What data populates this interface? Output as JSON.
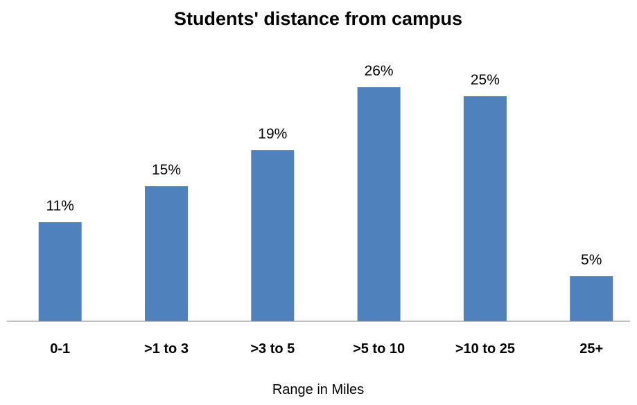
{
  "chart_data": {
    "type": "bar",
    "title": "Students' distance from campus",
    "xlabel": "Range in Miles",
    "ylabel": "",
    "categories": [
      "0-1",
      ">1 to 3",
      ">3 to 5",
      ">5 to 10",
      ">10 to 25",
      "25+"
    ],
    "values": [
      11,
      15,
      19,
      26,
      25,
      5
    ],
    "value_labels": [
      "11%",
      "15%",
      "19%",
      "26%",
      "25%",
      "5%"
    ],
    "unit": "%",
    "ylim": [
      0,
      30
    ],
    "grid": false,
    "legend": "none",
    "bar_color": "#4F81BD",
    "axis_color": "#868686"
  }
}
